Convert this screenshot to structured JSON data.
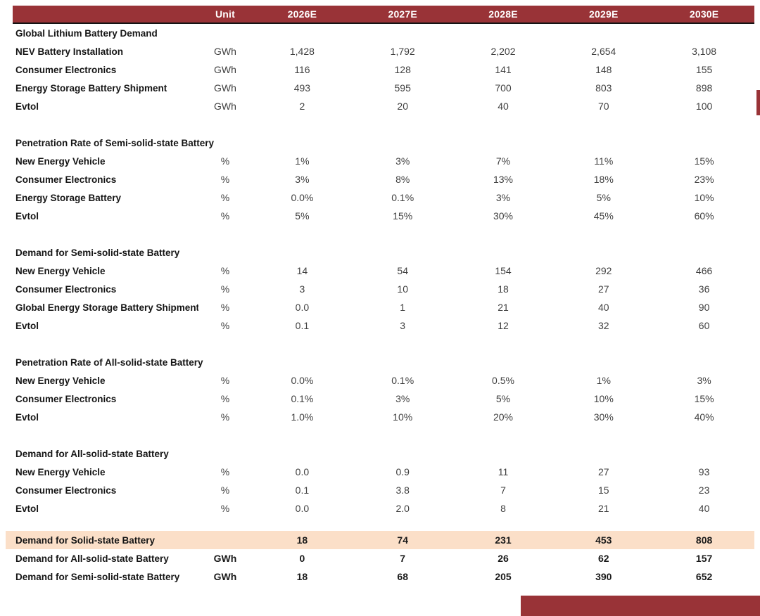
{
  "theme": {
    "header_bg": "#993337",
    "header_text": "#ffffff",
    "header_underline": "#141414",
    "highlight_bg": "#fbdfc8",
    "label_color": "#151515",
    "value_color": "#3f3f3f",
    "accent_red": "#993337"
  },
  "header": {
    "columns": [
      "Unit",
      "2026E",
      "2027E",
      "2028E",
      "2029E",
      "2030E"
    ]
  },
  "sections": [
    {
      "title": "Global Lithium Battery Demand",
      "rows": [
        {
          "label": "NEV Battery Installation",
          "unit": "GWh",
          "values": [
            "1,428",
            "1,792",
            "2,202",
            "2,654",
            "3,108"
          ]
        },
        {
          "label": "Consumer Electronics",
          "unit": "GWh",
          "values": [
            "116",
            "128",
            "141",
            "148",
            "155"
          ]
        },
        {
          "label": "Energy Storage Battery Shipment",
          "unit": "GWh",
          "values": [
            "493",
            "595",
            "700",
            "803",
            "898"
          ]
        },
        {
          "label": "Evtol",
          "unit": "GWh",
          "values": [
            "2",
            "20",
            "40",
            "70",
            "100"
          ]
        }
      ]
    },
    {
      "title": "Penetration Rate of Semi-solid-state Battery",
      "rows": [
        {
          "label": "New Energy Vehicle",
          "unit": "%",
          "values": [
            "1%",
            "3%",
            "7%",
            "11%",
            "15%"
          ]
        },
        {
          "label": "Consumer Electronics",
          "unit": "%",
          "values": [
            "3%",
            "8%",
            "13%",
            "18%",
            "23%"
          ]
        },
        {
          "label": "Energy Storage Battery",
          "unit": "%",
          "values": [
            "0.0%",
            "0.1%",
            "3%",
            "5%",
            "10%"
          ]
        },
        {
          "label": "Evtol",
          "unit": "%",
          "values": [
            "5%",
            "15%",
            "30%",
            "45%",
            "60%"
          ]
        }
      ]
    },
    {
      "title": "Demand for Semi-solid-state Battery",
      "rows": [
        {
          "label": "New Energy Vehicle",
          "unit": "%",
          "values": [
            "14",
            "54",
            "154",
            "292",
            "466"
          ]
        },
        {
          "label": "Consumer Electronics",
          "unit": "%",
          "values": [
            "3",
            "10",
            "18",
            "27",
            "36"
          ]
        },
        {
          "label": "Global Energy Storage Battery Shipment",
          "unit": "%",
          "values": [
            "0.0",
            "1",
            "21",
            "40",
            "90"
          ]
        },
        {
          "label": "Evtol",
          "unit": "%",
          "values": [
            "0.1",
            "3",
            "12",
            "32",
            "60"
          ]
        }
      ]
    },
    {
      "title": "Penetration Rate of All-solid-state Battery",
      "rows": [
        {
          "label": "New Energy Vehicle",
          "unit": "%",
          "values": [
            "0.0%",
            "0.1%",
            "0.5%",
            "1%",
            "3%"
          ]
        },
        {
          "label": "Consumer Electronics",
          "unit": "%",
          "values": [
            "0.1%",
            "3%",
            "5%",
            "10%",
            "15%"
          ]
        },
        {
          "label": "Evtol",
          "unit": "%",
          "values": [
            "1.0%",
            "10%",
            "20%",
            "30%",
            "40%"
          ]
        }
      ]
    },
    {
      "title": "Demand for All-solid-state Battery",
      "rows": [
        {
          "label": "New Energy Vehicle",
          "unit": "%",
          "values": [
            "0.0",
            "0.9",
            "11",
            "27",
            "93"
          ]
        },
        {
          "label": "Consumer Electronics",
          "unit": "%",
          "values": [
            "0.1",
            "3.8",
            "7",
            "15",
            "23"
          ]
        },
        {
          "label": "Evtol",
          "unit": "%",
          "values": [
            "0.0",
            "2.0",
            "8",
            "21",
            "40"
          ]
        }
      ]
    }
  ],
  "summary": {
    "rows": [
      {
        "label": "Demand for Solid-state Battery",
        "unit": "",
        "values": [
          "18",
          "74",
          "231",
          "453",
          "808"
        ],
        "highlight": true
      },
      {
        "label": "Demand for All-solid-state Battery",
        "unit": "GWh",
        "values": [
          "0",
          "7",
          "26",
          "62",
          "157"
        ],
        "highlight": false
      },
      {
        "label": "Demand for Semi-solid-state Battery",
        "unit": "GWh",
        "values": [
          "18",
          "68",
          "205",
          "390",
          "652"
        ],
        "highlight": false
      }
    ]
  }
}
